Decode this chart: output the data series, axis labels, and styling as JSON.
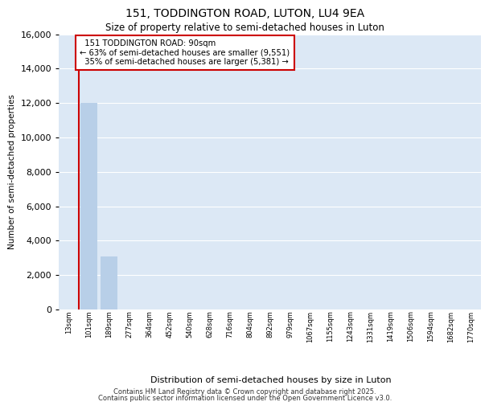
{
  "title1": "151, TODDINGTON ROAD, LUTON, LU4 9EA",
  "title2": "Size of property relative to semi-detached houses in Luton",
  "xlabel": "Distribution of semi-detached houses by size in Luton",
  "ylabel": "Number of semi-detached properties",
  "categories": [
    "13sqm",
    "101sqm",
    "189sqm",
    "277sqm",
    "364sqm",
    "452sqm",
    "540sqm",
    "628sqm",
    "716sqm",
    "804sqm",
    "892sqm",
    "979sqm",
    "1067sqm",
    "1155sqm",
    "1243sqm",
    "1331sqm",
    "1419sqm",
    "1506sqm",
    "1594sqm",
    "1682sqm",
    "1770sqm"
  ],
  "values": [
    0,
    12000,
    3100,
    0,
    0,
    0,
    0,
    0,
    0,
    0,
    0,
    0,
    0,
    0,
    0,
    0,
    0,
    0,
    0,
    0,
    0
  ],
  "bar_color": "#b8cfe8",
  "subject_line_color": "#cc0000",
  "subject_label": "151 TODDINGTON ROAD: 90sqm",
  "pct_smaller": 63,
  "count_smaller": 9551,
  "pct_larger": 35,
  "count_larger": 5381,
  "ylim": [
    0,
    16000
  ],
  "yticks": [
    0,
    2000,
    4000,
    6000,
    8000,
    10000,
    12000,
    14000,
    16000
  ],
  "plot_bg_color": "#dce8f5",
  "annotation_box_edge": "#cc0000",
  "footer1": "Contains HM Land Registry data © Crown copyright and database right 2025.",
  "footer2": "Contains public sector information licensed under the Open Government Licence v3.0."
}
